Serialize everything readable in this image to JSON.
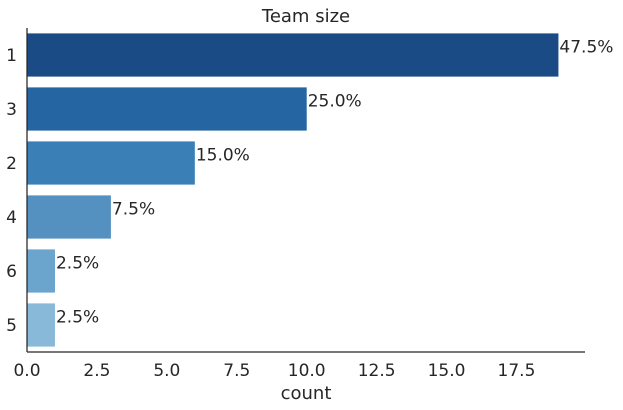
{
  "chart_data": {
    "type": "bar",
    "orientation": "horizontal",
    "title": "Team size",
    "xlabel": "count",
    "ylabel": "",
    "categories": [
      "1",
      "3",
      "2",
      "4",
      "6",
      "5"
    ],
    "values": [
      19,
      10,
      6,
      3,
      1,
      1
    ],
    "data_labels": [
      "47.5%",
      "25.0%",
      "15.0%",
      "7.5%",
      "2.5%",
      "2.5%"
    ],
    "colors": [
      "#1b4b85",
      "#2465a2",
      "#3a7fb6",
      "#5490c0",
      "#6ba4cc",
      "#89b9d8"
    ],
    "xlim": [
      0,
      19.95
    ],
    "xticks": [
      0,
      2.5,
      5,
      7.5,
      10,
      12.5,
      15,
      17.5
    ],
    "xtick_labels": [
      "0.0",
      "2.5",
      "5.0",
      "7.5",
      "10.0",
      "12.5",
      "15.0",
      "17.5"
    ],
    "grid": false,
    "legend": "none"
  }
}
